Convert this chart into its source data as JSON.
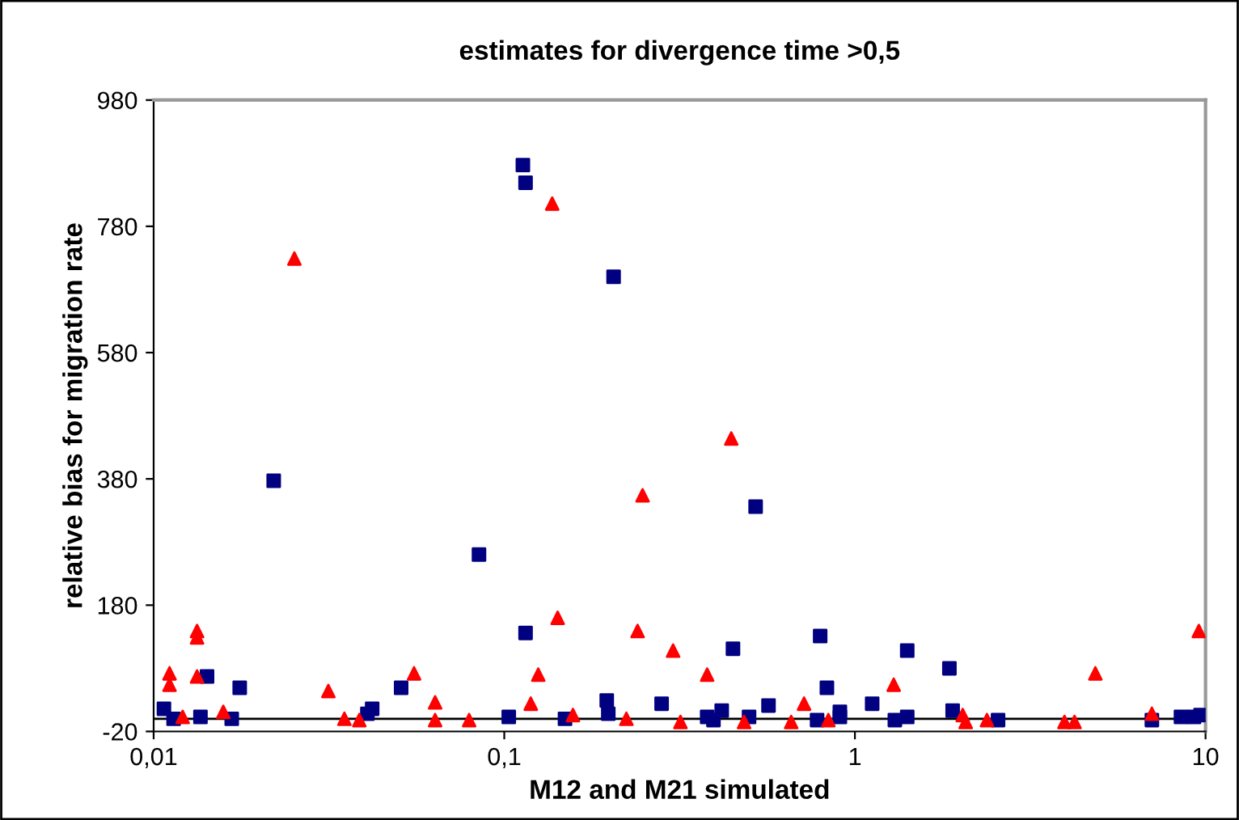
{
  "chart_data": {
    "type": "scatter",
    "title": "estimates for divergence time >0,5",
    "xlabel": "M12 and M21 simulated",
    "ylabel": "relative bias for migration rate",
    "log": "x",
    "grid": false,
    "legend": false,
    "xlim": [
      0.01,
      10
    ],
    "xticks": [
      {
        "value": 0.01,
        "label": "0,01"
      },
      {
        "value": 0.1,
        "label": "0,1"
      },
      1,
      10
    ],
    "ylim": [
      -20,
      980
    ],
    "yticks": [
      -20,
      180,
      380,
      580,
      780,
      980
    ],
    "ref_lines": [
      {
        "axis": "y",
        "value": 0,
        "color": "#000000"
      }
    ],
    "series": [
      {
        "color": "#000080",
        "marker": "square",
        "x": [
          0.0107,
          0.0114,
          0.0136,
          0.0142,
          0.0167,
          0.0176,
          0.022,
          0.0407,
          0.042,
          0.0508,
          0.0847,
          0.103,
          0.115,
          0.149,
          0.196,
          0.198,
          0.281,
          0.113,
          0.115,
          0.205,
          0.521,
          0.449,
          0.379,
          0.395,
          0.417,
          0.499,
          0.567,
          0.796,
          0.832,
          0.78,
          0.906,
          0.906,
          1.12,
          1.3,
          1.41,
          1.41,
          1.86,
          1.9,
          2.56,
          7.03,
          8.51,
          9.27,
          9.68
        ],
        "values": [
          16,
          0,
          3,
          67,
          0,
          49,
          377,
          8,
          16,
          49,
          260,
          3,
          136,
          0,
          29,
          8,
          24,
          877,
          849,
          700,
          336,
          111,
          3,
          -2,
          13,
          3,
          21,
          131,
          49,
          -2,
          11,
          3,
          24,
          -2,
          3,
          108,
          80,
          13,
          -2,
          -2,
          3,
          3,
          6
        ]
      },
      {
        "color": "#ff0000",
        "marker": "triangle",
        "x": [
          0.0111,
          0.0111,
          0.0121,
          0.0133,
          0.0133,
          0.0133,
          0.0158,
          0.0315,
          0.035,
          0.0386,
          0.0553,
          0.0635,
          0.0635,
          0.0794,
          0.119,
          0.125,
          0.142,
          0.157,
          0.223,
          0.24,
          0.248,
          0.303,
          0.318,
          0.0252,
          0.137,
          0.444,
          0.379,
          0.483,
          0.658,
          0.716,
          0.84,
          1.29,
          2.03,
          2.07,
          2.38,
          3.96,
          4.23,
          4.85,
          7.03,
          9.57
        ],
        "values": [
          72,
          54,
          3,
          139,
          129,
          67,
          11,
          44,
          0,
          -2,
          72,
          26,
          -2,
          -2,
          24,
          70,
          160,
          6,
          0,
          139,
          354,
          108,
          -5,
          729,
          816,
          444,
          70,
          -5,
          -5,
          24,
          -2,
          54,
          6,
          -5,
          -2,
          -5,
          -5,
          72,
          8,
          139
        ]
      }
    ]
  }
}
